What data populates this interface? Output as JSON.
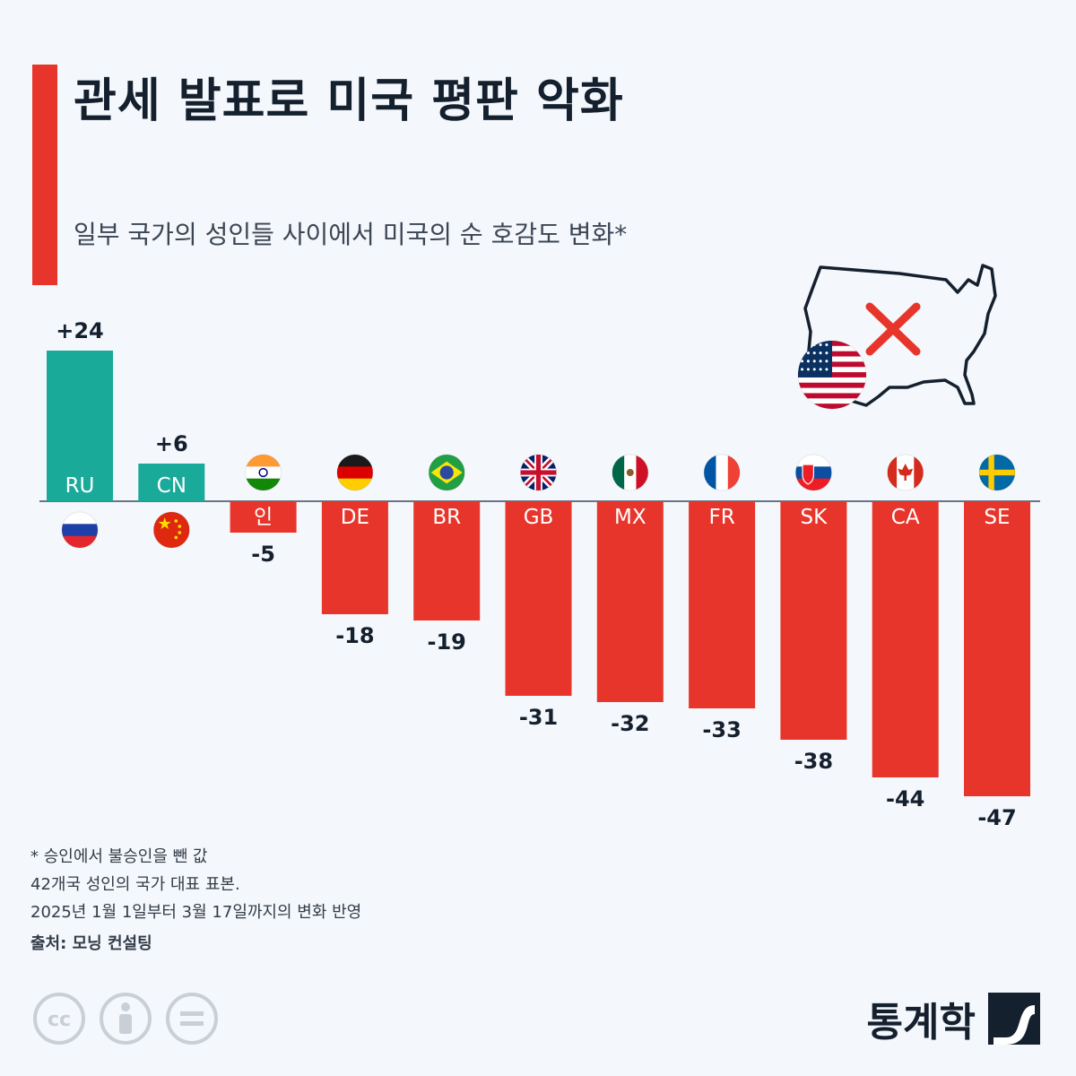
{
  "header": {
    "title": "관세 발표로 미국 평판 악화",
    "subtitle": "일부 국가의 성인들 사이에서 미국의 순 호감도 변화*"
  },
  "colors": {
    "accent": "#e8352b",
    "positive": "#1aaa99",
    "negative": "#e8352b",
    "text": "#15202e",
    "axis": "#3a4a5e"
  },
  "chart_data": {
    "type": "bar",
    "title": "일부 국가의 성인들 사이에서 미국의 순 호감도 변화*",
    "categories": [
      "RU",
      "CN",
      "인",
      "DE",
      "BR",
      "GB",
      "MX",
      "FR",
      "SK",
      "CA",
      "SE"
    ],
    "flags": [
      "ru",
      "cn",
      "in",
      "de",
      "br",
      "gb",
      "mx",
      "fr",
      "sk",
      "ca",
      "se"
    ],
    "values": [
      24,
      6,
      -5,
      -18,
      -19,
      -31,
      -32,
      -33,
      -38,
      -44,
      -47
    ],
    "value_labels": [
      "+24",
      "+6",
      "-5",
      "-18",
      "-19",
      "-31",
      "-32",
      "-33",
      "-38",
      "-44",
      "-47"
    ],
    "ylim": [
      -47,
      24
    ],
    "grid": false,
    "legend": "none"
  },
  "notes": {
    "line1": "* 승인에서 불승인을 뺀 값",
    "line2": "42개국 성인의 국가 대표 표본.",
    "line3": "2025년 1월 1일부터 3월 17일까지의 변화 반영",
    "source": "출처: 모닝 컨설팅"
  },
  "brand": {
    "name": "통계학"
  },
  "icons": {
    "illustration": "us-map-cross-icon",
    "us_flag": "us-flag-icon",
    "license": [
      "cc-icon",
      "attribution-icon",
      "no-derivatives-icon"
    ],
    "brand_logo": "brand-logo-icon"
  }
}
